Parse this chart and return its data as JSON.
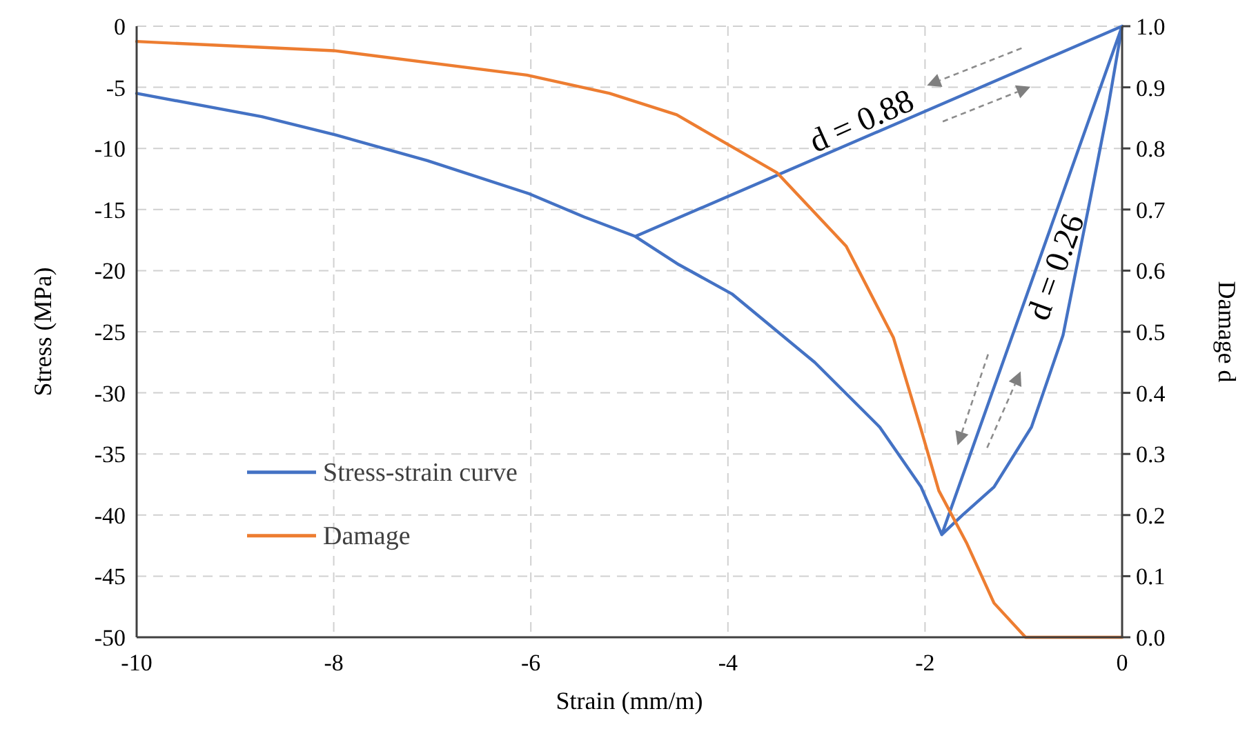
{
  "chart_data": {
    "type": "line",
    "xlabel": "Strain (mm/m)",
    "ylabel": "Stress (MPa)",
    "y2label": "Damage d",
    "xlim": [
      -10,
      0
    ],
    "xticks": [
      -10,
      -8,
      -6,
      -4,
      -2,
      0
    ],
    "ylim": [
      -50,
      0
    ],
    "yticks": [
      -50,
      -45,
      -40,
      -35,
      -30,
      -25,
      -20,
      -15,
      -10,
      -5,
      0
    ],
    "y2lim": [
      0,
      1
    ],
    "y2ticks": [
      {
        "value": 0,
        "label": "0.0"
      },
      {
        "value": 0.1,
        "label": "0.1"
      },
      {
        "value": 0.2,
        "label": "0.2"
      },
      {
        "value": 0.3,
        "label": "0.3"
      },
      {
        "value": 0.4,
        "label": "0.4"
      },
      {
        "value": 0.5,
        "label": "0.5"
      },
      {
        "value": 0.6,
        "label": "0.6"
      },
      {
        "value": 0.7,
        "label": "0.7"
      },
      {
        "value": 0.8,
        "label": "0.8"
      },
      {
        "value": 0.9,
        "label": "0.9"
      },
      {
        "value": 1,
        "label": "1.0"
      }
    ],
    "grid": true,
    "legend": "bottom left",
    "line_style": "solid",
    "series": [
      {
        "name": "Stress-strain curve",
        "color": "#4472c4",
        "x": [
          0,
          -0.15,
          -0.32,
          -0.6,
          -0.92,
          -1.3,
          -1.62,
          -1.83,
          0,
          -1.83,
          -2.04,
          -2.46,
          -3.12,
          -3.96,
          -4.5,
          -4.94,
          0,
          -4.94,
          -5.46,
          -6.02,
          -7.05,
          -7.98,
          -8.73,
          -10
        ],
        "values": [
          0,
          -7,
          -14,
          -25.3,
          -32.8,
          -37.7,
          -40,
          -41.6,
          0,
          -41.6,
          -37.7,
          -32.8,
          -27.5,
          -21.9,
          -19.5,
          -17.2,
          0,
          -17.2,
          -15.6,
          -13.7,
          -11,
          -8.9,
          -7.4,
          -5.5
        ]
      },
      {
        "name": "Damage",
        "color": "#ed7d31",
        "axis": "y2",
        "x": [
          -10,
          -8,
          -6.04,
          -5.2,
          -4.52,
          -3.5,
          -2.8,
          -2.32,
          -2.04,
          -1.86,
          -1.58,
          -1.3,
          -0.98,
          0
        ],
        "values": [
          0.975,
          0.96,
          0.92,
          0.89,
          0.855,
          0.76,
          0.64,
          0.49,
          0.34,
          0.24,
          0.155,
          0.056,
          0,
          0
        ]
      }
    ],
    "annotations": [
      {
        "text": "d = 0.88",
        "x": -2.6,
        "y": -9
      },
      {
        "text": "d = 0.26",
        "x": -0.88,
        "y": -20
      }
    ]
  }
}
